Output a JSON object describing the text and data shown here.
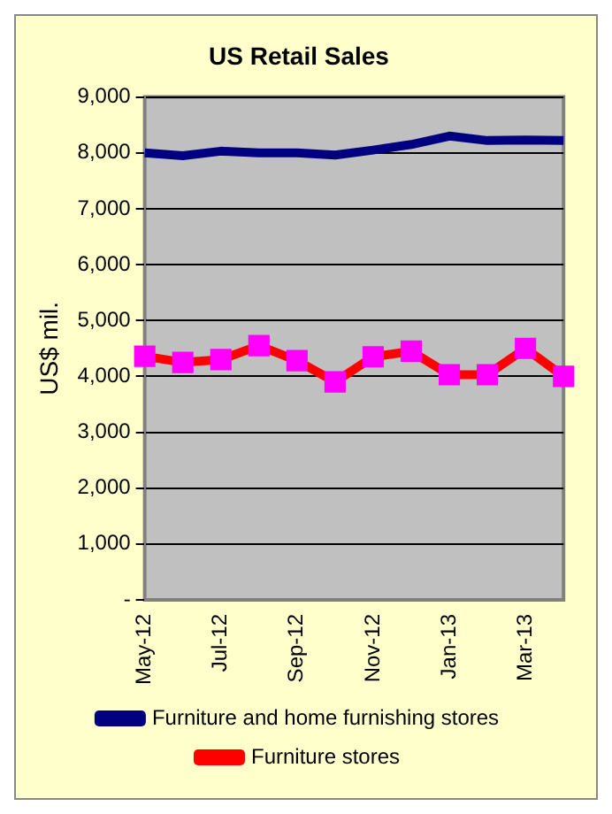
{
  "chart_data": {
    "type": "line",
    "title": "US Retail Sales",
    "ylabel": "US$ mil.",
    "categories": [
      "May-12",
      null,
      "Jul-12",
      null,
      "Sep-12",
      null,
      "Nov-12",
      null,
      "Jan-13",
      null,
      "Mar-13",
      null
    ],
    "series": [
      {
        "name": "Furniture and home furnishing stores",
        "color": "#000080",
        "marker": "none",
        "values": [
          8000,
          7950,
          8030,
          8000,
          8000,
          7960,
          8050,
          8150,
          8300,
          8220,
          8230,
          8220
        ]
      },
      {
        "name": "Furniture stores",
        "color": "#ff0000",
        "marker": "square",
        "values": [
          4360,
          4250,
          4300,
          4550,
          4280,
          3900,
          4350,
          4450,
          4030,
          4030,
          4500,
          4000
        ]
      }
    ],
    "ylim": [
      0,
      9000
    ],
    "yticks": [
      {
        "value": 0,
        "label": "-"
      },
      {
        "value": 1000,
        "label": "1,000"
      },
      {
        "value": 2000,
        "label": "2,000"
      },
      {
        "value": 3000,
        "label": "3,000"
      },
      {
        "value": 4000,
        "label": "4,000"
      },
      {
        "value": 5000,
        "label": "5,000"
      },
      {
        "value": 6000,
        "label": "6,000"
      },
      {
        "value": 7000,
        "label": "7,000"
      },
      {
        "value": 8000,
        "label": "8,000"
      },
      {
        "value": 9000,
        "label": "9,000"
      }
    ],
    "grid": "y",
    "legend": "bottom"
  }
}
